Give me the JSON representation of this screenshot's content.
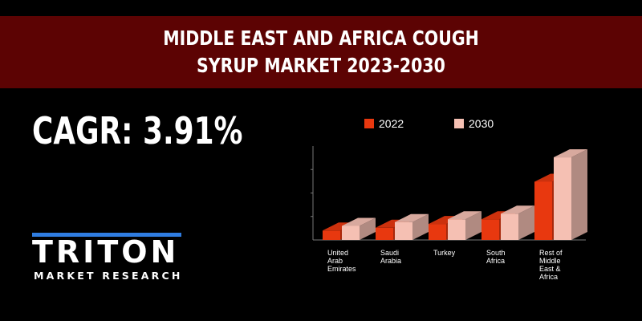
{
  "header": {
    "title_line1": "MIDDLE EAST AND AFRICA COUGH",
    "title_line2": "SYRUP MARKET 2023-2030"
  },
  "cagr_text": "CAGR: 3.91%",
  "logo": {
    "word": "TRITON",
    "subtitle": "MARKET RESEARCH"
  },
  "colors": {
    "banner": "#5c0303",
    "series_2022": "#e8380f",
    "series_2030": "#f5c0b3",
    "logo_accent": "#2f7de1"
  },
  "chart_data": {
    "type": "bar",
    "categories": [
      [
        "United",
        "Arab",
        "Emirates"
      ],
      [
        "Saudi",
        "Arabia"
      ],
      [
        "Turkey"
      ],
      [
        "South",
        "Africa"
      ],
      [
        "Rest of",
        "Middle",
        "East &",
        "Africa"
      ]
    ],
    "series": [
      {
        "name": "2022",
        "values": [
          10,
          13,
          17,
          22,
          62
        ]
      },
      {
        "name": "2030",
        "values": [
          15,
          19,
          22,
          28,
          88
        ]
      }
    ],
    "ylim": [
      0,
      100
    ],
    "legend_position": "top",
    "style": "3d-columns"
  }
}
